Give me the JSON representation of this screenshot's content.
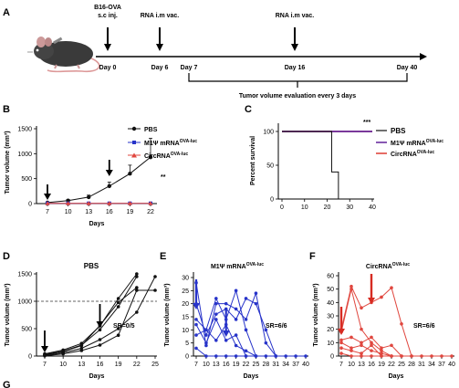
{
  "panel_labels": {
    "a": "A",
    "b": "B",
    "c": "C",
    "d": "D",
    "e": "E",
    "f": "F",
    "g": "G"
  },
  "colors": {
    "black": "#111111",
    "blue": "#2733c9",
    "red": "#e0473f",
    "purple": "#6a2fa0",
    "grey": "#777777"
  },
  "icons": {
    "mouse": "mouse-icon"
  },
  "timeline": {
    "event_inject": "B16-OVA",
    "event_inject_2": "s.c inj.",
    "event_vac1": "RNA i.m vac.",
    "event_vac2": "RNA i.m vac.",
    "day0": "Day 0",
    "day6": "Day 6",
    "day7": "Day 7",
    "day16": "Day 16",
    "day40": "Day 40",
    "eval_text": "Tumor volume evaluation every 3 days"
  },
  "panel_b": {
    "ylabel": "Tumor volume (mm³)",
    "xlabel": "Days",
    "sig": "**",
    "legend": {
      "pbs": "PBS",
      "m1_base": "M1Ψ mRNA",
      "m1_sup": "OVA-luc",
      "circ_base": "CircRNA",
      "circ_sup": "OVA-luc"
    },
    "xticks": [
      "7",
      "10",
      "13",
      "16",
      "19",
      "22"
    ],
    "yticks": [
      "0",
      "500",
      "1000",
      "1500"
    ]
  },
  "panel_c": {
    "ylabel": "Percent survival",
    "sig": "***",
    "xticks": [
      "0",
      "10",
      "20",
      "30",
      "40"
    ],
    "yticks": [
      "0",
      "50",
      "100"
    ],
    "legend": {
      "pbs": "PBS",
      "m1_base": "M1Ψ mRNA",
      "m1_sup": "OVA-luc",
      "circ_base": "CircRNA",
      "circ_sup": "OVA-luc"
    }
  },
  "panel_d": {
    "title": "PBS",
    "ylabel": "Tumor volume (mm³)",
    "xlabel": "Days",
    "sr": "SR=0/5",
    "xticks": [
      "7",
      "10",
      "13",
      "16",
      "19",
      "22",
      "25"
    ],
    "yticks": [
      "0",
      "500",
      "1000",
      "1500"
    ]
  },
  "panel_e": {
    "title_base": "M1Ψ mRNA",
    "title_sup": "OVA-luc",
    "ylabel": "Tumor volume (mm³)",
    "xlabel": "Days",
    "sr": "SR=6/6",
    "xticks": [
      "7",
      "10",
      "13",
      "16",
      "19",
      "22",
      "25",
      "28",
      "31",
      "34",
      "37",
      "40"
    ],
    "yticks": [
      "0",
      "5",
      "10",
      "15",
      "20",
      "25",
      "30"
    ]
  },
  "panel_f": {
    "title_base": "CircRNA",
    "title_sup": "OVA-luc",
    "ylabel": "Tumor volume (mm³)",
    "xlabel": "Days",
    "sr": "SR=6/6",
    "xticks": [
      "7",
      "10",
      "13",
      "16",
      "19",
      "22",
      "25",
      "28",
      "31",
      "34",
      "37",
      "40"
    ],
    "yticks": [
      "0",
      "10",
      "20",
      "30",
      "40",
      "50",
      "60"
    ]
  },
  "chart_data": [
    {
      "id": "B",
      "type": "line",
      "xlabel": "Days",
      "ylabel": "Tumor volume (mm³)",
      "x": [
        7,
        10,
        13,
        16,
        19,
        22
      ],
      "xlim": [
        7,
        22
      ],
      "ylim": [
        0,
        1500
      ],
      "series": [
        {
          "name": "PBS",
          "values": [
            20,
            60,
            130,
            350,
            600,
            930
          ],
          "err": [
            5,
            20,
            40,
            80,
            170,
            380
          ],
          "color": "#111111",
          "marker": "circle"
        },
        {
          "name": "M1Ψ mRNA OVA-luc",
          "values": [
            5,
            5,
            5,
            5,
            5,
            5
          ],
          "color": "#2733c9",
          "marker": "square"
        },
        {
          "name": "CircRNA OVA-luc",
          "values": [
            5,
            5,
            5,
            5,
            5,
            5
          ],
          "color": "#e0473f",
          "marker": "triangle"
        }
      ],
      "vaccination_days": [
        7,
        16
      ]
    },
    {
      "id": "C",
      "type": "line",
      "ylabel": "Percent survival",
      "xlim": [
        0,
        40
      ],
      "ylim": [
        0,
        100
      ],
      "series": [
        {
          "name": "PBS",
          "steps": [
            [
              0,
              100
            ],
            [
              22,
              100
            ],
            [
              22,
              40
            ],
            [
              25,
              40
            ],
            [
              25,
              0
            ]
          ],
          "color": "#111111"
        },
        {
          "name": "M1Ψ mRNA OVA-luc",
          "steps": [
            [
              0,
              100
            ],
            [
              40,
              100
            ]
          ],
          "color": "#6a2fa0"
        },
        {
          "name": "CircRNA OVA-luc",
          "steps": [
            [
              0,
              100
            ],
            [
              40,
              100
            ]
          ],
          "color": "#e0473f"
        }
      ]
    },
    {
      "id": "D",
      "type": "line",
      "title": "PBS",
      "xlim": [
        7,
        25
      ],
      "ylim": [
        0,
        1500
      ],
      "reference_line": 1000,
      "series": [
        {
          "x": [
            7,
            10,
            13,
            16,
            19,
            22
          ],
          "values": [
            40,
            110,
            230,
            550,
            1050,
            1500
          ]
        },
        {
          "x": [
            7,
            10,
            13,
            16,
            19,
            22
          ],
          "values": [
            30,
            90,
            200,
            480,
            900,
            1450
          ]
        },
        {
          "x": [
            7,
            10,
            13,
            16,
            19,
            22
          ],
          "values": [
            20,
            80,
            190,
            560,
            980,
            1250
          ]
        },
        {
          "x": [
            7,
            10,
            13,
            16,
            19,
            22,
            25
          ],
          "values": [
            10,
            60,
            140,
            300,
            500,
            800,
            1450
          ]
        },
        {
          "x": [
            7,
            10,
            13,
            16,
            19,
            22,
            25
          ],
          "values": [
            5,
            40,
            100,
            200,
            380,
            1200,
            1200
          ]
        }
      ],
      "vaccination_days": [
        7,
        16
      ]
    },
    {
      "id": "E",
      "type": "line",
      "xlim": [
        7,
        40
      ],
      "ylim": [
        0,
        30
      ],
      "series": [
        {
          "x": [
            7,
            10,
            13,
            16,
            19,
            22,
            25,
            28,
            31
          ],
          "values": [
            28,
            4,
            20,
            20,
            18,
            14,
            24,
            5,
            0
          ]
        },
        {
          "x": [
            7,
            10,
            13,
            16,
            19,
            22,
            25,
            28,
            31
          ],
          "values": [
            20,
            8,
            16,
            18,
            14,
            22,
            20,
            10,
            0
          ]
        },
        {
          "x": [
            7,
            10,
            13,
            16,
            19,
            22,
            25
          ],
          "values": [
            14,
            10,
            22,
            14,
            25,
            10,
            0
          ]
        },
        {
          "x": [
            7,
            10,
            13,
            16,
            19,
            22
          ],
          "values": [
            12,
            5,
            14,
            6,
            8,
            0
          ]
        },
        {
          "x": [
            7,
            10,
            13,
            16,
            19,
            22,
            25
          ],
          "values": [
            8,
            10,
            6,
            12,
            4,
            2,
            0
          ]
        },
        {
          "x": [
            7,
            10,
            13,
            16,
            19,
            22,
            25,
            28,
            31,
            34,
            37,
            40
          ],
          "values": [
            3,
            0,
            0,
            0,
            0,
            0,
            0,
            0,
            0,
            0,
            0,
            0
          ]
        }
      ],
      "vaccination_days": [
        7,
        16
      ]
    },
    {
      "id": "F",
      "type": "line",
      "xlim": [
        7,
        40
      ],
      "ylim": [
        0,
        60
      ],
      "series": [
        {
          "x": [
            7,
            10,
            13,
            16,
            19,
            22,
            25,
            28
          ],
          "values": [
            20,
            52,
            36,
            40,
            44,
            51,
            24,
            0
          ]
        },
        {
          "x": [
            7,
            10,
            13,
            16,
            19,
            22
          ],
          "values": [
            18,
            50,
            20,
            10,
            4,
            0
          ]
        },
        {
          "x": [
            7,
            10,
            13,
            16,
            19,
            22,
            25
          ],
          "values": [
            12,
            14,
            10,
            14,
            6,
            8,
            0
          ]
        },
        {
          "x": [
            7,
            10,
            13,
            16,
            19,
            22
          ],
          "values": [
            10,
            6,
            8,
            4,
            2,
            0
          ]
        },
        {
          "x": [
            7,
            10,
            13,
            16,
            19
          ],
          "values": [
            6,
            4,
            2,
            8,
            0
          ]
        },
        {
          "x": [
            7,
            10,
            13,
            16,
            19,
            22,
            25,
            28,
            31,
            34,
            37,
            40
          ],
          "values": [
            2,
            0,
            0,
            0,
            0,
            0,
            0,
            0,
            0,
            0,
            0,
            0
          ]
        }
      ],
      "vaccination_days": [
        7,
        16
      ]
    }
  ]
}
